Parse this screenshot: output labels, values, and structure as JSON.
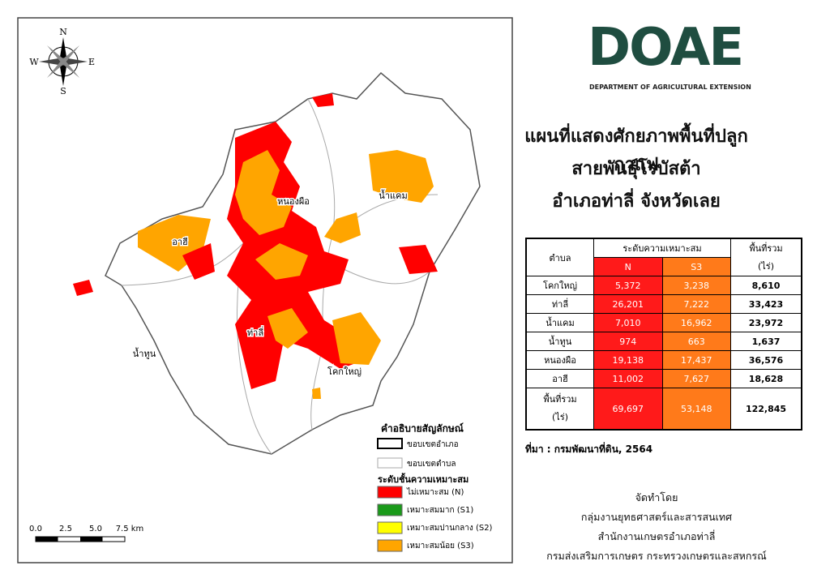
{
  "map": {
    "compass": {
      "n": "N",
      "s": "S",
      "e": "E",
      "w": "W"
    },
    "places": [
      "หนองผือ",
      "น้ำแคม",
      "อาฮี",
      "ท่าลี่",
      "น้ำทูน",
      "โคกใหญ่"
    ],
    "legend": {
      "title": "คำอธิบายสัญลักษณ์",
      "boundaries": [
        "ขอบเขตอำเภอ",
        "ขอบเขตตำบล"
      ],
      "subtitle": "ระดับชั้นความเหมาะสม",
      "classes": [
        {
          "label": "ไม่เหมาะสม (N)",
          "color": "#ff0000"
        },
        {
          "label": "เหมาะสมมาก (S1)",
          "color": "#1a9a1a"
        },
        {
          "label": "เหมาะสมปานกลาง (S2)",
          "color": "#ffff00"
        },
        {
          "label": "เหมาะสมน้อย (S3)",
          "color": "#ffa500"
        }
      ]
    },
    "scale": [
      "0.0",
      "2.5",
      "5.0",
      "7.5 km"
    ]
  },
  "logo": {
    "mark": "DOAE",
    "name": "DEPARTMENT OF AGRICULTURAL EXTENSION"
  },
  "title": [
    "แผนที่แสดงศักยภาพพื้นที่ปลูกกาแฟ",
    "สายพันธุ์โรบัสต้า",
    "อำเภอท่าลี่ จังหวัดเลย"
  ],
  "table": {
    "header": {
      "place": "ตำบล",
      "group": "ระดับความเหมาะสม",
      "n": "N",
      "s3": "S3",
      "total": [
        "พื้นที่รวม",
        "(ไร่)"
      ]
    },
    "rows": [
      [
        "โคกใหญ่",
        "5,372",
        "3,238",
        "8,610"
      ],
      [
        "ท่าลี่",
        "26,201",
        "7,222",
        "33,423"
      ],
      [
        "น้ำแคม",
        "7,010",
        "16,962",
        "23,972"
      ],
      [
        "น้ำทูน",
        "974",
        "663",
        "1,637"
      ],
      [
        "หนองผือ",
        "19,138",
        "17,437",
        "36,576"
      ],
      [
        "อาฮี",
        "11,002",
        "7,627",
        "18,628"
      ]
    ],
    "footer": {
      "label": [
        "พื้นที่รวม",
        "(ไร่)"
      ],
      "values": [
        "69,697",
        "53,148",
        "122,845"
      ]
    }
  },
  "source": "ที่มา : กรมพัฒนาที่ดิน, 2564",
  "credits": [
    "จัดทำโดย",
    "กลุ่มงานยุทธศาสตร์และสารสนเทศ",
    "สำนักงานเกษตรอำเภอท่าลี่",
    "กรมส่งเสริมการเกษตร กระทรวงเกษตรและสหกรณ์"
  ]
}
